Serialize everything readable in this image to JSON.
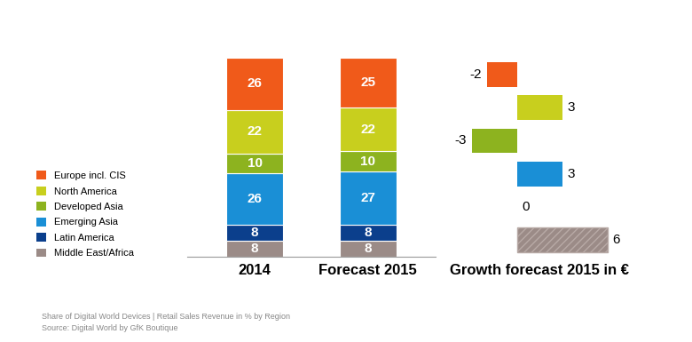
{
  "chart_data": [
    {
      "type": "bar",
      "stacked": true,
      "data_labels": true,
      "tick_labels": "x",
      "legend": "lower left",
      "categories": [
        "2014",
        "Forecast 2015"
      ],
      "ylim": [
        0,
        100
      ],
      "series": [
        {
          "name": "Europe incl. CIS",
          "color": "#f05a1a",
          "values": [
            26,
            25
          ]
        },
        {
          "name": "North America",
          "color": "#c8cf1e",
          "values": [
            22,
            22
          ]
        },
        {
          "name": "Developed Asia",
          "color": "#8db31f",
          "values": [
            10,
            10
          ]
        },
        {
          "name": "Emerging Asia",
          "color": "#1a8fd6",
          "values": [
            26,
            27
          ]
        },
        {
          "name": "Latin America",
          "color": "#0b3f8c",
          "values": [
            8,
            8
          ]
        },
        {
          "name": "Middle East/Africa",
          "color": "#9b8b87",
          "values": [
            8,
            8
          ]
        }
      ],
      "annotations": [
        "Share of Digital World Devices | Retail Sales Revenue in % by Region",
        "Source: Digital World by GfK Boutique"
      ]
    },
    {
      "type": "bar",
      "orientation": "horizontal",
      "data_labels": true,
      "tick_labels": false,
      "title": "Growth forecast 2015 in €",
      "categories": [
        null,
        null,
        null,
        null,
        null,
        null
      ],
      "values": [
        -2,
        3,
        -3,
        3,
        0,
        6
      ],
      "colors": [
        "#f05a1a",
        "#c8cf1e",
        "#8db31f",
        "#1a8fd6",
        "#0b3f8c",
        "#9b8b87"
      ],
      "xlim": [
        -4,
        7
      ]
    }
  ]
}
